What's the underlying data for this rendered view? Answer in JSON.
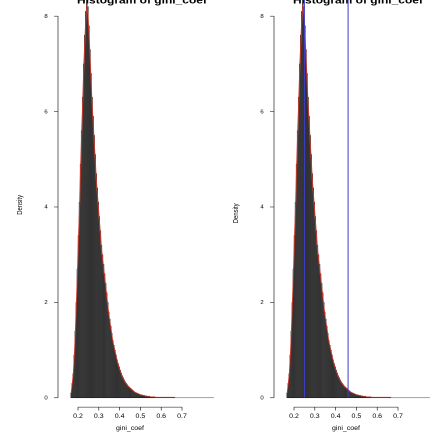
{
  "page": {
    "background": "#ffffff"
  },
  "style": {
    "bar_fill": "#4d4d4d",
    "bar_stroke": "#111111",
    "density_color": "#c0392b",
    "vline_color": "#3c3ccf"
  },
  "chart_data": [
    {
      "type": "bar",
      "title": "Histogram of gini_coef",
      "xlabel": "gini_coef",
      "ylabel": "Density",
      "xlim": [
        0.19,
        0.76
      ],
      "ylim": [
        0,
        8.6
      ],
      "xticks": [
        "0.2",
        "0.3",
        "0.4",
        "0.5",
        "0.6",
        "0.7"
      ],
      "yticks": [
        "0",
        "2",
        "4",
        "6",
        "8"
      ],
      "grid": false,
      "bin_width": 0.005,
      "bin_start": 0.205,
      "values": [
        0.1,
        0.3,
        0.5,
        0.9,
        1.4,
        2.0,
        2.7,
        3.4,
        4.1,
        4.9,
        5.6,
        6.3,
        7.0,
        7.6,
        8.1,
        8.4,
        8.2,
        7.8,
        7.3,
        6.8,
        6.3,
        5.9,
        5.5,
        5.1,
        4.7,
        4.4,
        4.1,
        3.8,
        3.5,
        3.2,
        3.0,
        2.8,
        2.6,
        2.4,
        2.2,
        2.0,
        1.8,
        1.65,
        1.5,
        1.35,
        1.2,
        1.1,
        1.0,
        0.9,
        0.8,
        0.72,
        0.65,
        0.58,
        0.52,
        0.46,
        0.42,
        0.37,
        0.33,
        0.3,
        0.27,
        0.24,
        0.22,
        0.2,
        0.18,
        0.16,
        0.14,
        0.12,
        0.11,
        0.1,
        0.09,
        0.08,
        0.07,
        0.06,
        0.06,
        0.05,
        0.05,
        0.04,
        0.04,
        0.03,
        0.03,
        0.03,
        0.02,
        0.02,
        0.02,
        0.02,
        0.02,
        0.01,
        0.01,
        0.01,
        0.01,
        0.01,
        0.01,
        0.01,
        0.01,
        0.01,
        0.01,
        0.01,
        0.01,
        0.01,
        0.01,
        0.01,
        0.01,
        0.01,
        0.01,
        0.01
      ],
      "density_curve": true,
      "vlines": []
    },
    {
      "type": "bar",
      "title": "Histogram of gini_coef",
      "xlabel": "gini_coef",
      "ylabel": "Density",
      "xlim": [
        0.19,
        0.76
      ],
      "ylim": [
        0,
        8.6
      ],
      "xticks": [
        "0.2",
        "0.3",
        "0.4",
        "0.5",
        "0.6",
        "0.7"
      ],
      "yticks": [
        "0",
        "2",
        "4",
        "6",
        "8"
      ],
      "grid": false,
      "bin_width": 0.005,
      "bin_start": 0.205,
      "values": [
        0.1,
        0.3,
        0.5,
        0.9,
        1.4,
        2.0,
        2.7,
        3.4,
        4.1,
        4.9,
        5.6,
        6.3,
        7.0,
        7.6,
        8.1,
        8.4,
        8.2,
        7.8,
        7.3,
        6.8,
        6.3,
        5.9,
        5.5,
        5.1,
        4.7,
        4.4,
        4.1,
        3.8,
        3.5,
        3.2,
        3.0,
        2.8,
        2.6,
        2.4,
        2.2,
        2.0,
        1.8,
        1.65,
        1.5,
        1.35,
        1.2,
        1.1,
        1.0,
        0.9,
        0.8,
        0.72,
        0.65,
        0.58,
        0.52,
        0.46,
        0.42,
        0.37,
        0.33,
        0.3,
        0.27,
        0.24,
        0.22,
        0.2,
        0.18,
        0.16,
        0.14,
        0.12,
        0.11,
        0.1,
        0.09,
        0.08,
        0.07,
        0.06,
        0.06,
        0.05,
        0.05,
        0.04,
        0.04,
        0.03,
        0.03,
        0.03,
        0.02,
        0.02,
        0.02,
        0.02,
        0.02,
        0.01,
        0.01,
        0.01,
        0.01,
        0.01,
        0.01,
        0.01,
        0.01,
        0.01,
        0.01,
        0.01,
        0.01,
        0.01,
        0.01,
        0.01,
        0.01,
        0.01,
        0.01,
        0.01
      ],
      "density_curve": true,
      "vlines": [
        0.25,
        0.46
      ]
    }
  ]
}
